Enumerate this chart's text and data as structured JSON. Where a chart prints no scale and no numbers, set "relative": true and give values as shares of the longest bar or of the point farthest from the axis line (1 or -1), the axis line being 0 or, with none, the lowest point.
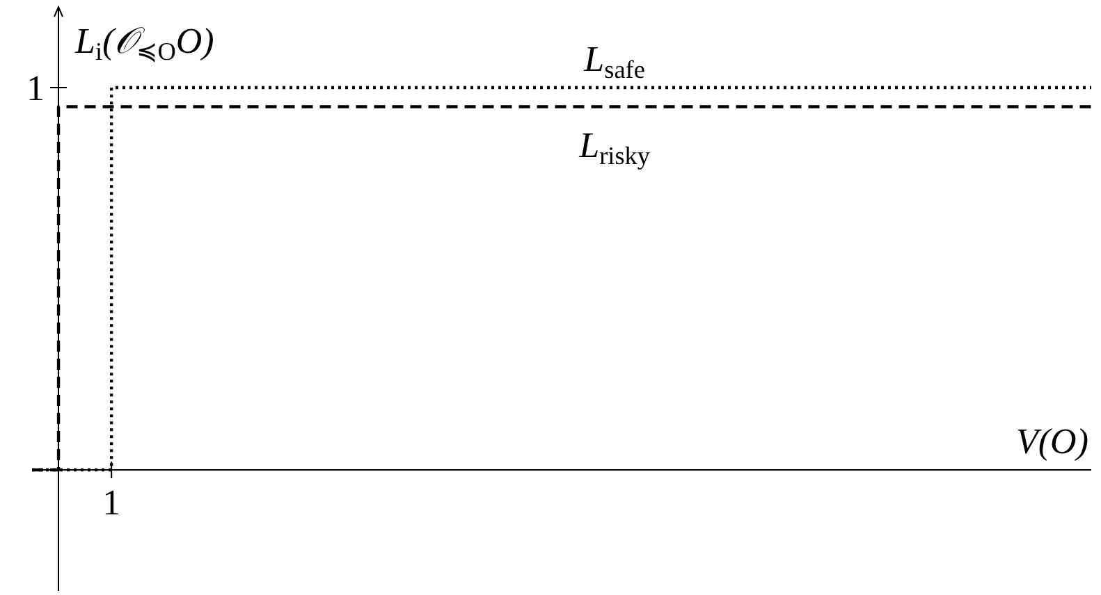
{
  "chart_data": {
    "type": "step",
    "xlabel": "V(O)",
    "ylabel": "L$_{i}$(𝒪$_{≼O}$O)",
    "relative": true,
    "categories": [
      null,
      null,
      null,
      null,
      null,
      null,
      null,
      null,
      null,
      null,
      null,
      null,
      null,
      null,
      null,
      null,
      null,
      null,
      null,
      null,
      null,
      null,
      null,
      null,
      null,
      null,
      null,
      null,
      null,
      null,
      null,
      null,
      null,
      null,
      null,
      null,
      null,
      null,
      null,
      null,
      null
    ],
    "annotations": [
      "1",
      "1"
    ],
    "series": [
      {
        "name": "L$_{safe}$",
        "color": "#000000",
        "line_style": "dotted",
        "values": [
          0,
          0,
          0,
          1,
          1,
          1,
          1,
          1,
          1,
          1,
          1,
          1,
          1,
          1,
          1,
          1,
          1,
          1,
          1,
          1,
          1,
          1,
          1,
          1,
          1,
          1,
          1,
          1,
          1,
          1,
          1,
          1,
          1,
          1,
          1,
          1,
          1,
          1,
          1,
          1,
          1
        ]
      },
      {
        "name": "L$_{risky}$",
        "color": "#000000",
        "line_style": "dashed",
        "values": [
          0,
          0.95,
          0.95,
          0.95,
          0.95,
          0.95,
          0.95,
          0.95,
          0.95,
          0.95,
          0.95,
          0.95,
          0.95,
          0.95,
          0.95,
          0.95,
          0.95,
          0.95,
          0.95,
          0.95,
          0.95,
          0.95,
          0.95,
          0.95,
          0.95,
          0.95,
          0.95,
          0.95,
          0.95,
          0.95,
          0.95,
          0.95,
          0.95,
          0.95,
          0.95,
          0.95,
          0.95,
          0.95,
          0.95,
          0.95,
          0.95
        ]
      }
    ]
  }
}
